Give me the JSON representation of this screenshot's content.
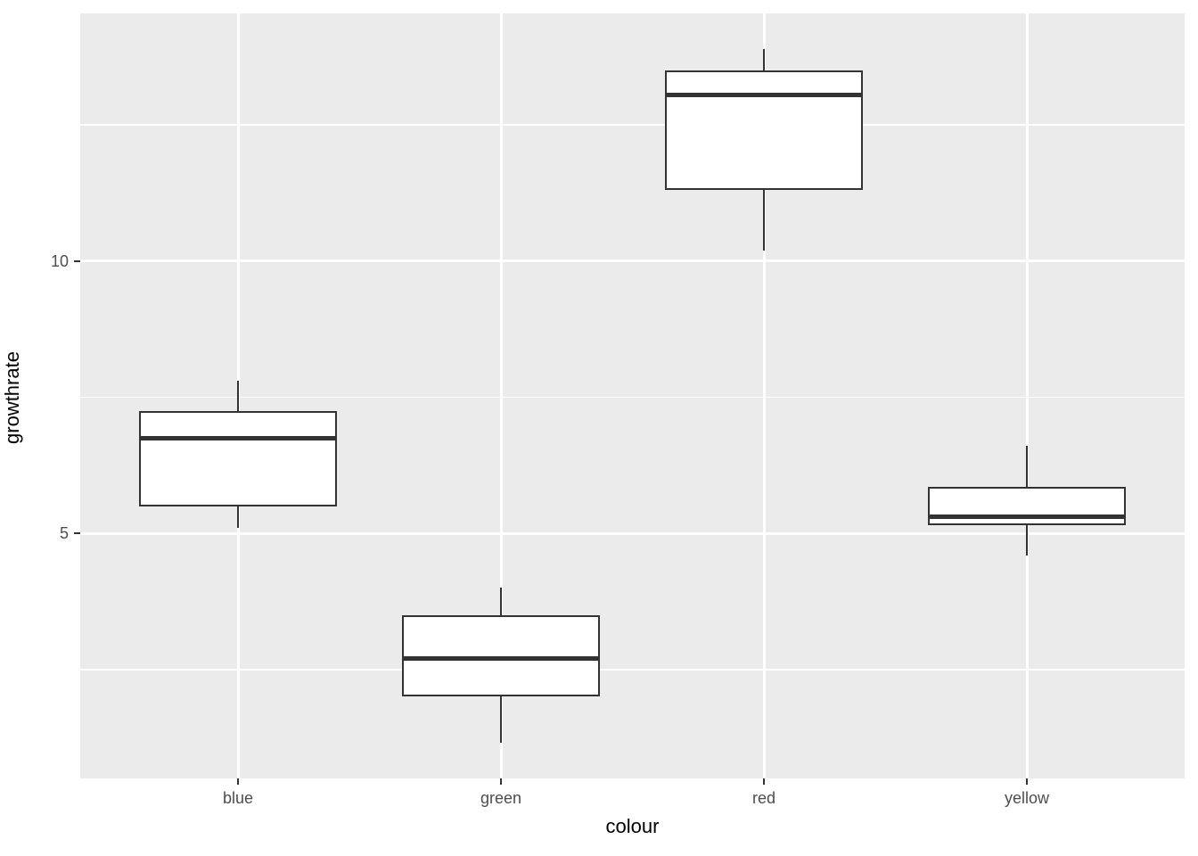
{
  "chart_data": {
    "type": "boxplot",
    "title": "",
    "xlabel": "colour",
    "ylabel": "growthrate",
    "categories": [
      "blue",
      "green",
      "red",
      "yellow"
    ],
    "series": [
      {
        "name": "blue",
        "min": 5.1,
        "q1": 5.5,
        "median": 6.75,
        "q3": 7.25,
        "max": 7.8
      },
      {
        "name": "green",
        "min": 1.15,
        "q1": 2.0,
        "median": 2.7,
        "q3": 3.5,
        "max": 4.0
      },
      {
        "name": "red",
        "min": 10.2,
        "q1": 11.3,
        "median": 13.05,
        "q3": 13.5,
        "max": 13.9
      },
      {
        "name": "yellow",
        "min": 4.6,
        "q1": 5.15,
        "median": 5.3,
        "q3": 5.85,
        "max": 6.6
      }
    ],
    "ylim": [
      0.5,
      14.55
    ],
    "y_major_ticks": [
      5,
      10
    ],
    "y_major_tick_labels": [
      "5",
      "10"
    ],
    "y_minor_gridlines": [
      2.5,
      7.5,
      12.5
    ],
    "grid": "on",
    "legend": "none",
    "box_fill": "#FFFFFF",
    "box_stroke": "#333333",
    "panel_background": "#EBEBEB",
    "gridline_color": "#FFFFFF",
    "tick_label_color": "#4D4D4D",
    "axis_title_color": "#000000"
  }
}
